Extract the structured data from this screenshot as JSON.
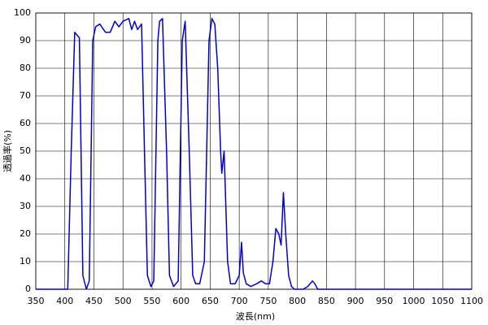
{
  "chart_data": {
    "type": "line",
    "xlabel": "波長(nm)",
    "ylabel": "透過率(%)",
    "x": [
      350,
      405,
      411,
      417,
      425,
      431,
      437,
      442,
      448,
      453,
      460,
      470,
      478,
      486,
      493,
      500,
      510,
      515,
      520,
      525,
      532,
      537,
      542,
      548,
      553,
      560,
      563,
      568,
      575,
      580,
      587,
      595,
      602,
      607,
      614,
      620,
      625,
      632,
      640,
      648,
      653,
      658,
      663,
      668,
      670,
      674,
      680,
      685,
      693,
      700,
      704,
      707,
      712,
      720,
      730,
      738,
      745,
      752,
      758,
      763,
      768,
      772,
      776,
      780,
      785,
      790,
      795,
      810,
      818,
      826,
      830,
      835,
      1100
    ],
    "values": [
      0,
      0,
      50,
      93,
      91,
      5,
      0,
      3,
      90,
      95,
      96,
      93,
      93,
      97,
      95,
      97,
      98,
      94,
      97,
      94,
      96,
      50,
      5,
      1,
      3,
      90,
      97,
      98,
      50,
      5,
      1,
      3,
      90,
      97,
      50,
      5,
      2,
      2,
      10,
      90,
      98,
      96,
      80,
      50,
      42,
      50,
      10,
      2,
      2,
      5,
      17,
      6,
      2,
      1,
      2,
      3,
      2,
      2,
      10,
      22,
      20,
      16,
      35,
      20,
      5,
      1,
      0,
      0,
      1,
      3,
      2,
      0,
      0
    ],
    "color": "#0000cc",
    "xlim": [
      350,
      1100
    ],
    "xticks": [
      350,
      400,
      450,
      500,
      550,
      600,
      650,
      700,
      750,
      800,
      850,
      900,
      950,
      1000,
      1050,
      1100
    ],
    "ylim": [
      0,
      100
    ],
    "yticks": [
      0,
      10,
      20,
      30,
      40,
      50,
      60,
      70,
      80,
      90,
      100
    ],
    "grid": true
  }
}
